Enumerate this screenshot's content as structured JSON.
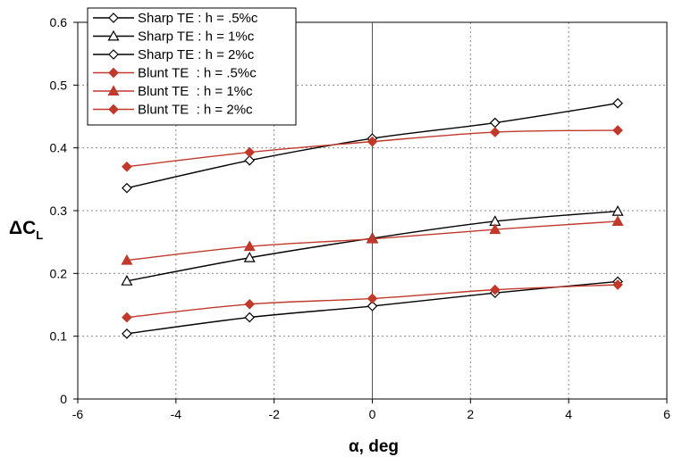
{
  "chart_data": {
    "type": "line",
    "title": "",
    "xlabel": "α, deg",
    "ylabel_main": "ΔC",
    "ylabel_sub": "L",
    "xlim": [
      -6,
      6
    ],
    "ylim": [
      0,
      0.6
    ],
    "xticks": [
      -6,
      -4,
      -2,
      0,
      2,
      4,
      6
    ],
    "yticks": [
      0,
      0.1,
      0.2,
      0.3,
      0.4,
      0.5,
      0.6
    ],
    "xtick_labels": [
      "-6",
      "-4",
      "-2",
      "0",
      "2",
      "4",
      "6"
    ],
    "ytick_labels": [
      "0",
      "0.1",
      "0.2",
      "0.3",
      "0.4",
      "0.5",
      "0.6"
    ],
    "grid": true,
    "legend_position": "top-left",
    "x": [
      -5,
      -2.5,
      0,
      2.5,
      5
    ],
    "series": [
      {
        "name": "Sharp TE : h = .5%c",
        "marker": "diamond-open",
        "color": "#000000",
        "values": [
          0.104,
          0.13,
          0.148,
          0.169,
          0.187
        ]
      },
      {
        "name": "Sharp TE : h = 1%c",
        "marker": "triangle-open",
        "color": "#000000",
        "values": [
          0.188,
          0.225,
          0.256,
          0.283,
          0.299
        ]
      },
      {
        "name": "Sharp TE : h = 2%c",
        "marker": "diamond-open",
        "color": "#000000",
        "values": [
          0.336,
          0.38,
          0.415,
          0.44,
          0.471
        ]
      },
      {
        "name": "Blunt TE  : h = .5%c",
        "marker": "diamond-filled",
        "color": "#c0392b",
        "values": [
          0.13,
          0.151,
          0.16,
          0.174,
          0.182
        ]
      },
      {
        "name": "Blunt TE  : h = 1%c",
        "marker": "triangle-filled",
        "color": "#c0392b",
        "values": [
          0.221,
          0.243,
          0.255,
          0.27,
          0.283
        ]
      },
      {
        "name": "Blunt TE  : h = 2%c",
        "marker": "diamond-filled",
        "color": "#c0392b",
        "values": [
          0.37,
          0.393,
          0.41,
          0.425,
          0.428
        ]
      }
    ]
  }
}
